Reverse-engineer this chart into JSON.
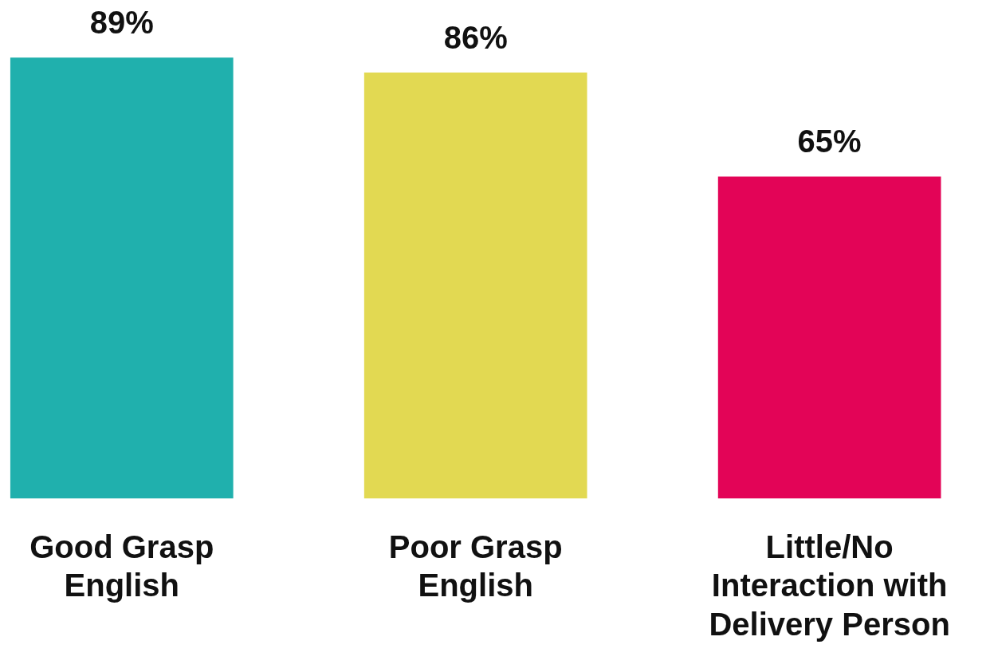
{
  "chart_data": {
    "type": "bar",
    "categories": [
      "Good Grasp English",
      "Poor Grasp English",
      "Little/No Interaction with Delivery Person"
    ],
    "values": [
      89,
      86,
      65
    ],
    "colors": [
      "#20b0ad",
      "#e2d952",
      "#e30457"
    ],
    "value_labels": [
      "89%",
      "86%",
      "65%"
    ]
  }
}
